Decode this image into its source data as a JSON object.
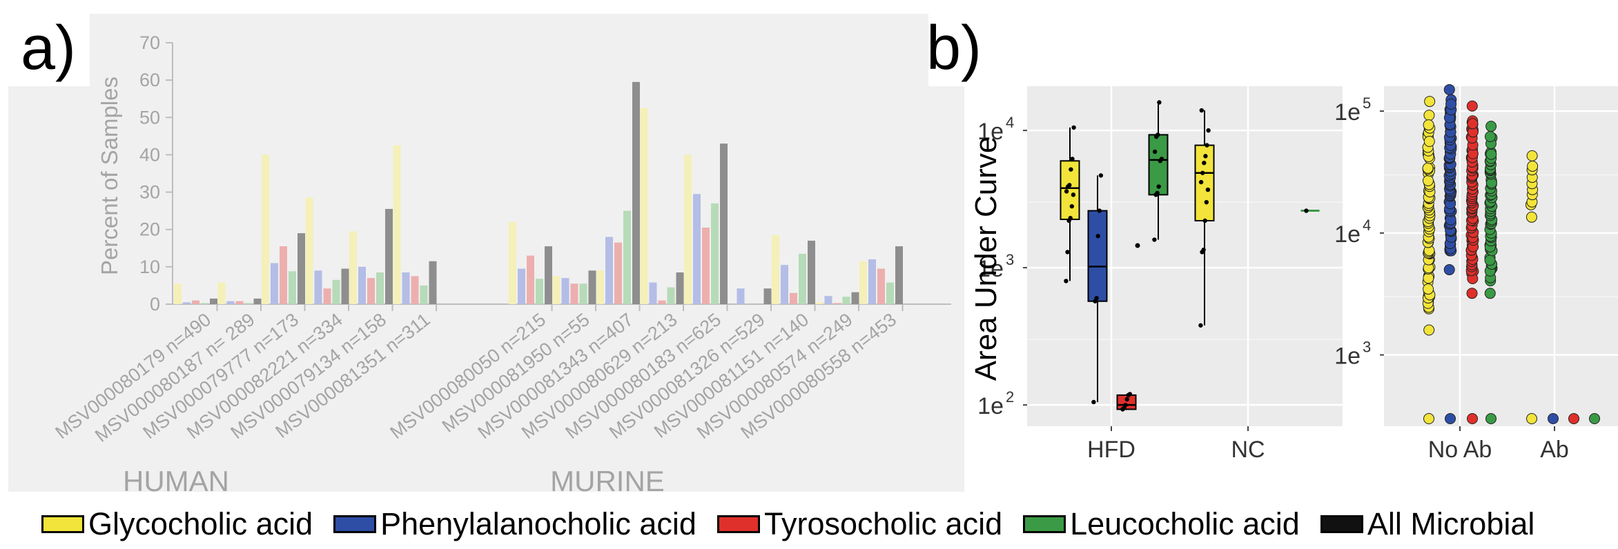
{
  "panel_labels": [
    "a)",
    "b)"
  ],
  "colors": {
    "glyco": "#f2e43a",
    "phenyl": "#2e4ea6",
    "tyro": "#e0302b",
    "leuco": "#3a9a45",
    "all": "#111111",
    "glyco_faded": "#f4f0b8",
    "phenyl_faded": "#b4bde6",
    "tyro_faded": "#ecafae",
    "leuco_faded": "#b6dbb8",
    "all_faded": "#8e8e8e"
  },
  "legend": [
    {
      "key": "glyco",
      "label": "Glycocholic acid"
    },
    {
      "key": "phenyl",
      "label": "Phenylalanocholic acid"
    },
    {
      "key": "tyro",
      "label": "Tyrosocholic acid"
    },
    {
      "key": "leuco",
      "label": "Leucocholic acid"
    },
    {
      "key": "all",
      "label": "All Microbial"
    }
  ],
  "chart_data": [
    {
      "type": "bar",
      "panel": "a)",
      "ylabel": "Percent of Samples",
      "ylim": [
        0,
        70
      ],
      "yticks": [
        0,
        10,
        20,
        30,
        40,
        50,
        60,
        70
      ],
      "group_labels": [
        "HUMAN",
        "MURINE"
      ],
      "categories": [
        "MSV000080179 n=490",
        "MSV000080187 n= 289",
        "MSV000079777 n=173",
        "MSV000082221 n=334",
        "MSV000079134 n=158",
        "MSV000081351 n=311",
        "MSV000080050 n=215",
        "MSV000081950 n=55",
        "MSV000081343 n=407",
        "MSV000080629 n=213",
        "MSV000080183 n=625",
        "MSV000081326 n=529",
        "MSV000081151 n=140",
        "MSV000080574 n=249",
        "MSV000080558 n=453"
      ],
      "category_group": [
        0,
        0,
        0,
        0,
        0,
        0,
        1,
        1,
        1,
        1,
        1,
        1,
        1,
        1,
        1
      ],
      "series": [
        {
          "key": "glyco",
          "values": [
            5.5,
            5.8,
            40,
            28.5,
            19.5,
            42.5,
            22,
            7.5,
            9,
            52.5,
            40,
            0,
            18.5,
            0.5,
            11.5
          ]
        },
        {
          "key": "phenyl",
          "values": [
            0.5,
            0.8,
            11,
            9,
            10,
            8.5,
            9.5,
            7,
            18,
            5.8,
            29.5,
            4.2,
            10.5,
            2.2,
            12
          ]
        },
        {
          "key": "tyro",
          "values": [
            1,
            0.8,
            15.5,
            4.2,
            7,
            7.5,
            13,
            5.5,
            16.5,
            1,
            20.5,
            0,
            3,
            0.3,
            9.5
          ]
        },
        {
          "key": "leuco",
          "values": [
            0.3,
            0.3,
            8.8,
            6.5,
            8.5,
            5,
            6.8,
            5.5,
            25,
            4.5,
            27,
            0,
            13.5,
            2,
            5.8
          ]
        },
        {
          "key": "all",
          "values": [
            1.5,
            1.5,
            19,
            9.5,
            25.5,
            11.5,
            15.5,
            9,
            59.5,
            8.5,
            43,
            4.2,
            17,
            3.2,
            15.5
          ]
        }
      ]
    },
    {
      "type": "box",
      "panel": "b) left",
      "ylabel": "Area Under Curve",
      "yscale": "log",
      "ylim": [
        70,
        21000
      ],
      "ytick_labels": [
        {
          "base": "1e",
          "exp": "2",
          "value": 100
        },
        {
          "base": "1e",
          "exp": "3",
          "value": 1000
        },
        {
          "base": "1e",
          "exp": "4",
          "value": 10000
        }
      ],
      "categories": [
        "HFD",
        "NC"
      ],
      "boxes": [
        {
          "category": 0,
          "key": "glyco",
          "whislo": 800,
          "q1": 2250,
          "med": 3800,
          "q3": 6000,
          "whishi": 10500,
          "points": [
            800,
            1300,
            2200,
            2300,
            2800,
            3400,
            3600,
            3900,
            4000,
            5200,
            6200,
            10500
          ]
        },
        {
          "category": 0,
          "key": "phenyl",
          "whislo": 105,
          "q1": 570,
          "med": 1020,
          "q3": 2600,
          "whishi": 4700,
          "points": [
            105,
            570,
            600,
            1700,
            2600,
            4700
          ]
        },
        {
          "category": 0,
          "key": "tyro",
          "whislo": 92,
          "q1": 93,
          "med": 100,
          "q3": 118,
          "whishi": 120,
          "points": [
            93,
            95,
            100,
            110,
            118,
            120
          ]
        },
        {
          "category": 0,
          "key": "leuco",
          "whislo": 1600,
          "q1": 3400,
          "med": 6100,
          "q3": 9300,
          "whishi": 16000,
          "points": [
            1600,
            3400,
            3500,
            3900,
            6000,
            6200,
            7000,
            9000,
            9300,
            16000
          ],
          "outliers": [
            1450
          ]
        },
        {
          "category": 1,
          "key": "glyco",
          "whislo": 380,
          "q1": 2200,
          "med": 4900,
          "q3": 7800,
          "whishi": 14000,
          "points": [
            380,
            1300,
            1350,
            2200,
            3000,
            3700,
            4200,
            4900,
            5800,
            6500,
            7800,
            10000,
            14000
          ]
        },
        {
          "category": 1,
          "key": "leuco",
          "whislo": 2600,
          "q1": 2600,
          "med": 2600,
          "q3": 2600,
          "whishi": 2600,
          "points": [
            2600
          ]
        }
      ]
    },
    {
      "type": "scatter",
      "panel": "b) right",
      "yscale": "log",
      "ylim": [
        260,
        160000
      ],
      "ytick_labels": [
        {
          "base": "1e",
          "exp": "3",
          "value": 1000
        },
        {
          "base": "1e",
          "exp": "4",
          "value": 10000
        },
        {
          "base": "1e",
          "exp": "5",
          "value": 100000
        }
      ],
      "categories": [
        "No Ab",
        "Ab"
      ],
      "baseline_value": 300,
      "strips": [
        {
          "category": 0,
          "key": "glyco",
          "min": 1600,
          "max": 120000,
          "n": 75,
          "baseline": true
        },
        {
          "category": 0,
          "key": "phenyl",
          "min": 5000,
          "max": 150000,
          "n": 75,
          "baseline": true
        },
        {
          "category": 0,
          "key": "tyro",
          "min": 3200,
          "max": 110000,
          "n": 70,
          "baseline": true
        },
        {
          "category": 0,
          "key": "leuco",
          "min": 3200,
          "max": 75000,
          "n": 60,
          "baseline": true
        },
        {
          "category": 1,
          "key": "glyco",
          "min": 13500,
          "max": 43000,
          "n": 10,
          "baseline": true
        },
        {
          "category": 1,
          "key": "phenyl",
          "min": null,
          "max": null,
          "n": 0,
          "baseline": true
        },
        {
          "category": 1,
          "key": "tyro",
          "min": null,
          "max": null,
          "n": 0,
          "baseline": true
        },
        {
          "category": 1,
          "key": "leuco",
          "min": null,
          "max": null,
          "n": 0,
          "baseline": true
        }
      ]
    }
  ]
}
